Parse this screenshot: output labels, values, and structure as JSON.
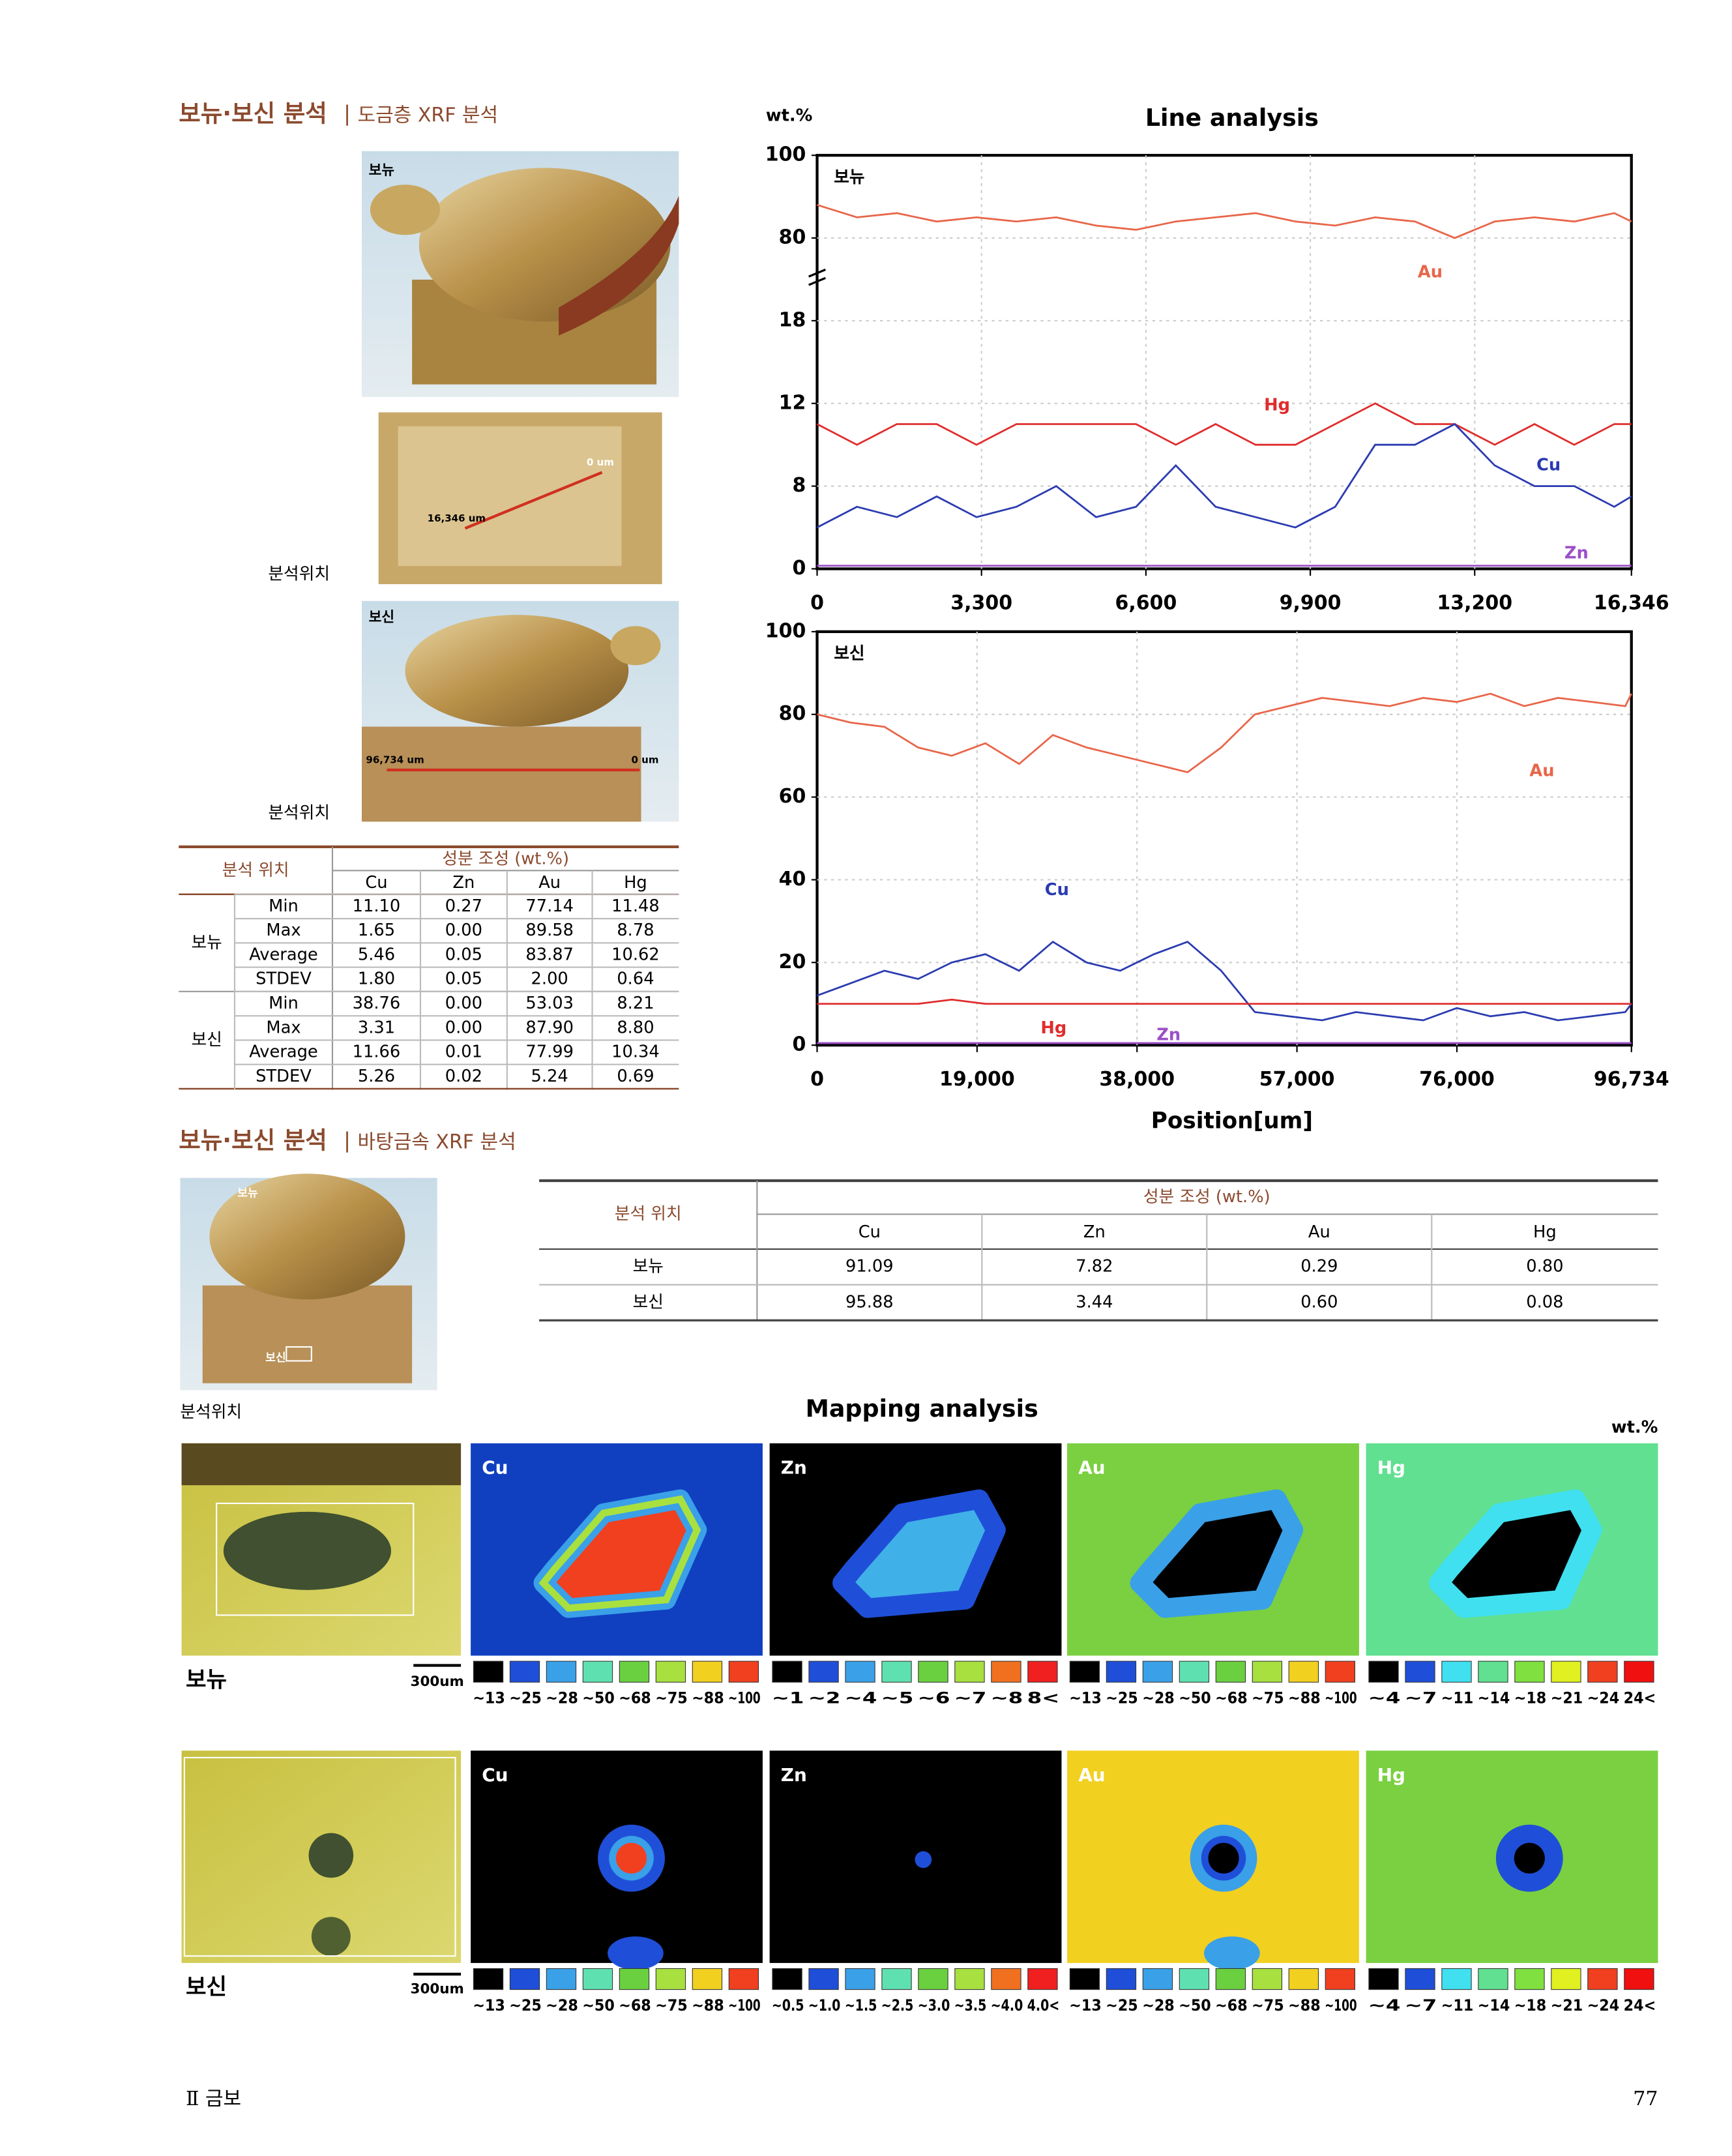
{
  "header": {
    "title": "보뉴·보신 분석",
    "subtitle": "도금층 XRF 분석"
  },
  "photos": {
    "top_label": "보뉴",
    "top_scan_start": "0 um",
    "top_scan_end": "16,346 um",
    "location_label_1": "분석위치",
    "bottom_label": "보신",
    "bottom_scan_start": "96,734 um",
    "bottom_scan_end": "0 um",
    "location_label_2": "분석위치"
  },
  "plating_table": {
    "header_location": "분석 위치",
    "header_composition": "성분 조성 (wt.%)",
    "columns": [
      "Cu",
      "Zn",
      "Au",
      "Hg"
    ],
    "groups": [
      {
        "name": "보뉴",
        "rows": [
          {
            "stat": "Min",
            "values": [
              "11.10",
              "0.27",
              "77.14",
              "11.48"
            ]
          },
          {
            "stat": "Max",
            "values": [
              "1.65",
              "0.00",
              "89.58",
              "8.78"
            ]
          },
          {
            "stat": "Average",
            "values": [
              "5.46",
              "0.05",
              "83.87",
              "10.62"
            ]
          },
          {
            "stat": "STDEV",
            "values": [
              "1.80",
              "0.05",
              "2.00",
              "0.64"
            ]
          }
        ]
      },
      {
        "name": "보신",
        "rows": [
          {
            "stat": "Min",
            "values": [
              "38.76",
              "0.00",
              "53.03",
              "8.21"
            ]
          },
          {
            "stat": "Max",
            "values": [
              "3.31",
              "0.00",
              "87.90",
              "8.80"
            ]
          },
          {
            "stat": "Average",
            "values": [
              "11.66",
              "0.01",
              "77.99",
              "10.34"
            ]
          },
          {
            "stat": "STDEV",
            "values": [
              "5.26",
              "0.02",
              "5.24",
              "0.69"
            ]
          }
        ]
      }
    ]
  },
  "base_section": {
    "title": "보뉴·보신 분석",
    "subtitle": "바탕금속 XRF 분석",
    "photo_top_label": "보뉴",
    "photo_bottom_label": "보신",
    "location_label": "분석위치"
  },
  "base_table": {
    "header_location": "분석 위치",
    "header_composition": "성분 조성 (wt.%)",
    "columns": [
      "Cu",
      "Zn",
      "Au",
      "Hg"
    ],
    "rows": [
      {
        "name": "보뉴",
        "values": [
          "91.09",
          "7.82",
          "0.29",
          "0.80"
        ]
      },
      {
        "name": "보신",
        "values": [
          "95.88",
          "3.44",
          "0.60",
          "0.08"
        ]
      }
    ]
  },
  "mapping": {
    "title": "Mapping analysis",
    "unit": "wt.%",
    "rows": [
      {
        "name": "보뉴",
        "scale": "300um",
        "panels": [
          {
            "element": "Cu",
            "legend": [
              "~13",
              "~25",
              "~28",
              "~50",
              "~68",
              "~75",
              "~88",
              "~100"
            ],
            "colors": [
              "#000000",
              "#1f4fd8",
              "#3aa0e8",
              "#5fe0b0",
              "#6ad040",
              "#a8e040",
              "#f2d020",
              "#f04020"
            ]
          },
          {
            "element": "Zn",
            "legend": [
              "~1",
              "~2",
              "~4",
              "~5",
              "~6",
              "~7",
              "~8",
              "8<"
            ],
            "colors": [
              "#000000",
              "#1f4fd8",
              "#3aa0e8",
              "#5fe0b0",
              "#6ad040",
              "#a8e040",
              "#f07020",
              "#f02020"
            ]
          },
          {
            "element": "Au",
            "legend": [
              "~13",
              "~25",
              "~28",
              "~50",
              "~68",
              "~75",
              "~88",
              "~100"
            ],
            "colors": [
              "#000000",
              "#1f4fd8",
              "#3aa0e8",
              "#5fe0b0",
              "#6ad040",
              "#a8e040",
              "#f2d020",
              "#f04020"
            ]
          },
          {
            "element": "Hg",
            "legend": [
              "~4",
              "~7",
              "~11",
              "~14",
              "~18",
              "~21",
              "~24",
              "24<"
            ],
            "colors": [
              "#000000",
              "#1f4fd8",
              "#40e0f0",
              "#60e090",
              "#80e040",
              "#e0f020",
              "#f04020",
              "#f01010"
            ]
          }
        ]
      },
      {
        "name": "보신",
        "scale": "300um",
        "panels": [
          {
            "element": "Cu",
            "legend": [
              "~13",
              "~25",
              "~28",
              "~50",
              "~68",
              "~75",
              "~88",
              "~100"
            ],
            "colors": [
              "#000000",
              "#1f4fd8",
              "#3aa0e8",
              "#5fe0b0",
              "#6ad040",
              "#a8e040",
              "#f2d020",
              "#f04020"
            ]
          },
          {
            "element": "Zn",
            "legend": [
              "~0.5",
              "~1.0",
              "~1.5",
              "~2.5",
              "~3.0",
              "~3.5",
              "~4.0",
              "4.0<"
            ],
            "colors": [
              "#000000",
              "#1f4fd8",
              "#3aa0e8",
              "#5fe0b0",
              "#6ad040",
              "#a8e040",
              "#f07020",
              "#f02020"
            ]
          },
          {
            "element": "Au",
            "legend": [
              "~13",
              "~25",
              "~28",
              "~50",
              "~68",
              "~75",
              "~88",
              "~100"
            ],
            "colors": [
              "#000000",
              "#1f4fd8",
              "#3aa0e8",
              "#5fe0b0",
              "#6ad040",
              "#a8e040",
              "#f2d020",
              "#f04020"
            ]
          },
          {
            "element": "Hg",
            "legend": [
              "~4",
              "~7",
              "~11",
              "~14",
              "~18",
              "~21",
              "~24",
              "24<"
            ],
            "colors": [
              "#000000",
              "#1f4fd8",
              "#40e0f0",
              "#60e090",
              "#80e040",
              "#e0f020",
              "#f04020",
              "#f01010"
            ]
          }
        ]
      }
    ]
  },
  "footer": {
    "section": "Ⅱ 금보",
    "page": "77"
  },
  "chart_data": [
    {
      "type": "line",
      "title": "Line analysis",
      "y_unit": "wt.%",
      "label": "보뉴",
      "y_break": true,
      "x": [
        0,
        800,
        1600,
        2400,
        3200,
        4000,
        4800,
        5600,
        6400,
        7200,
        8000,
        8800,
        9600,
        10400,
        11200,
        12000,
        12800,
        13600,
        14400,
        15200,
        16000,
        16346
      ],
      "xlim": [
        0,
        16346
      ],
      "xticks": [
        0,
        {
          "value": 3300,
          "label": "3,300"
        },
        {
          "value": 6600,
          "label": "6,600"
        },
        {
          "value": 9900,
          "label": "9,900"
        },
        {
          "value": 13200,
          "label": "13,200"
        },
        {
          "value": 16346,
          "label": "16,346"
        }
      ],
      "ylim": [
        0,
        100
      ],
      "yticks": [
        0,
        8,
        12,
        18,
        80,
        100
      ],
      "grid": true,
      "series": [
        {
          "name": "Au",
          "color": "#e8664a",
          "values": [
            88,
            85,
            86,
            84,
            85,
            84,
            85,
            83,
            82,
            84,
            85,
            86,
            84,
            83,
            85,
            84,
            80,
            84,
            85,
            84,
            86,
            84
          ]
        },
        {
          "name": "Hg",
          "color": "#e02c2c",
          "values": [
            11,
            10,
            11,
            11,
            10,
            11,
            11,
            11,
            11,
            10,
            11,
            10,
            10,
            11,
            12,
            11,
            11,
            10,
            11,
            10,
            11,
            11
          ]
        },
        {
          "name": "Cu",
          "color": "#2b3bb0",
          "values": [
            4,
            6,
            5,
            7,
            5,
            6,
            8,
            5,
            6,
            9,
            6,
            5,
            4,
            6,
            10,
            10,
            11,
            9,
            8,
            8,
            6,
            7
          ]
        },
        {
          "name": "Zn",
          "color": "#9b4fc9",
          "values": [
            0.3,
            0.3,
            0.3,
            0.3,
            0.3,
            0.3,
            0.3,
            0.3,
            0.3,
            0.3,
            0.3,
            0.3,
            0.3,
            0.3,
            0.3,
            0.3,
            0.3,
            0.3,
            0.3,
            0.3,
            0.3,
            0.3
          ]
        }
      ]
    },
    {
      "type": "line",
      "label": "보신",
      "xlabel": "Position[um]",
      "x": [
        0,
        4000,
        8000,
        12000,
        16000,
        20000,
        24000,
        28000,
        32000,
        36000,
        40000,
        44000,
        48000,
        52000,
        56000,
        60000,
        64000,
        68000,
        72000,
        76000,
        80000,
        84000,
        88000,
        92000,
        96000,
        96734
      ],
      "xlim": [
        0,
        96734
      ],
      "xticks": [
        0,
        {
          "value": 19000,
          "label": "19,000"
        },
        {
          "value": 38000,
          "label": "38,000"
        },
        {
          "value": 57000,
          "label": "57,000"
        },
        {
          "value": 76000,
          "label": "76,000"
        },
        {
          "value": 96734,
          "label": "96,734"
        }
      ],
      "ylim": [
        0,
        100
      ],
      "yticks": [
        0,
        20,
        40,
        60,
        80,
        100
      ],
      "grid": true,
      "series": [
        {
          "name": "Au",
          "color": "#e8664a",
          "values": [
            80,
            78,
            77,
            72,
            70,
            73,
            68,
            75,
            72,
            70,
            68,
            66,
            72,
            80,
            82,
            84,
            83,
            82,
            84,
            83,
            85,
            82,
            84,
            83,
            82,
            85
          ]
        },
        {
          "name": "Cu",
          "color": "#2b3bb0",
          "values": [
            12,
            15,
            18,
            16,
            20,
            22,
            18,
            25,
            20,
            18,
            22,
            25,
            18,
            8,
            7,
            6,
            8,
            7,
            6,
            9,
            7,
            8,
            6,
            7,
            8,
            10
          ]
        },
        {
          "name": "Hg",
          "color": "#e02c2c",
          "values": [
            10,
            10,
            10,
            10,
            11,
            10,
            10,
            10,
            10,
            10,
            10,
            10,
            10,
            10,
            10,
            10,
            10,
            10,
            10,
            10,
            10,
            10,
            10,
            10,
            10,
            10
          ]
        },
        {
          "name": "Zn",
          "color": "#9b4fc9",
          "values": [
            0.5,
            0.5,
            0.5,
            0.5,
            0.5,
            0.5,
            0.5,
            0.5,
            0.5,
            0.5,
            0.5,
            0.5,
            0.5,
            0.5,
            0.5,
            0.5,
            0.5,
            0.5,
            0.5,
            0.5,
            0.5,
            0.5,
            0.5,
            0.5,
            0.5,
            0.5
          ]
        }
      ]
    }
  ]
}
